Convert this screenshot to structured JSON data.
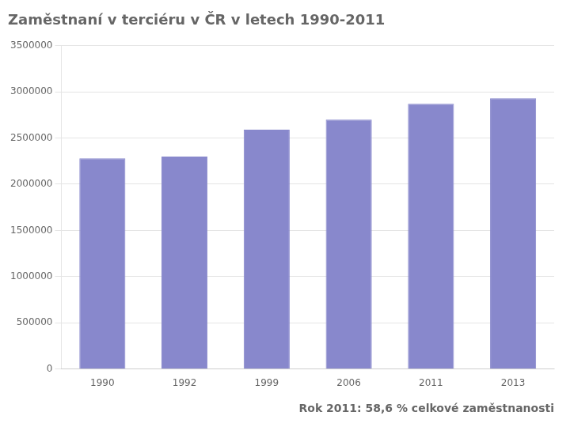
{
  "chart_data": {
    "type": "bar",
    "title": "Zaměstnaní v terciéru v ČR v letech 1990-2011",
    "subtitle": "Rok 2011: 58,6 % celkové zaměstnanosti",
    "categories": [
      "1990",
      "1992",
      "1999",
      "2006",
      "2011",
      "2013"
    ],
    "values": [
      2280000,
      2300000,
      2590000,
      2700000,
      2870000,
      2930000
    ],
    "color": "#8888cc",
    "ylim": [
      0,
      3500000
    ],
    "yticks": [
      0,
      500000,
      1000000,
      1500000,
      2000000,
      2500000,
      3000000,
      3500000
    ],
    "grid": true
  }
}
